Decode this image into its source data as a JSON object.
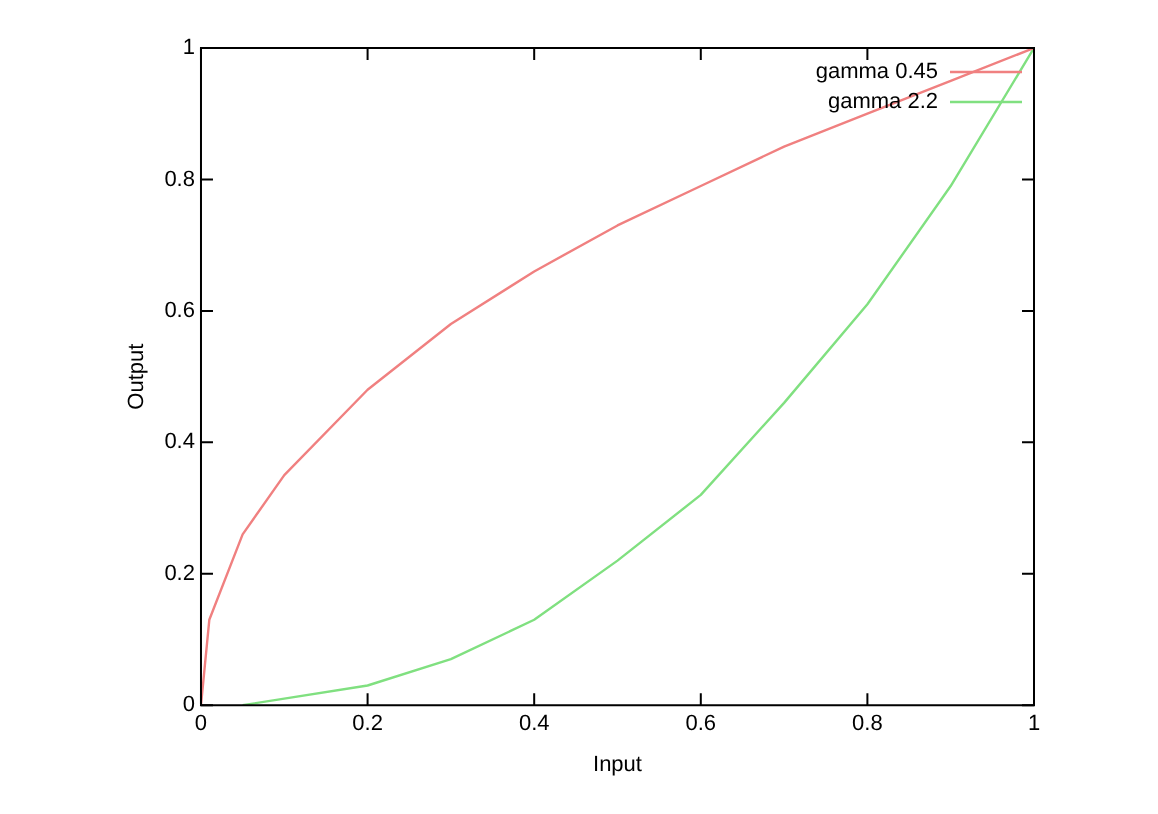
{
  "chart_data": {
    "type": "line",
    "xlabel": "Input",
    "ylabel": "Output",
    "xlim": [
      0,
      1
    ],
    "ylim": [
      0,
      1
    ],
    "xticks": [
      0,
      0.2,
      0.4,
      0.6,
      0.8,
      1
    ],
    "yticks": [
      0,
      0.2,
      0.4,
      0.6,
      0.8,
      1
    ],
    "grid": false,
    "legend": "top right",
    "marker": "none",
    "line_style": "solid",
    "series": [
      {
        "name": "gamma 0.45",
        "color": "#f08080",
        "x": [
          0,
          0.01,
          0.05,
          0.1,
          0.2,
          0.3,
          0.4,
          0.5,
          0.6,
          0.7,
          0.8,
          0.9,
          1
        ],
        "values": [
          0,
          0.13,
          0.26,
          0.35,
          0.48,
          0.58,
          0.66,
          0.73,
          0.79,
          0.85,
          0.9,
          0.95,
          1
        ]
      },
      {
        "name": "gamma 2.2",
        "color": "#80e080",
        "x": [
          0.05,
          0.1,
          0.2,
          0.3,
          0.4,
          0.5,
          0.6,
          0.7,
          0.8,
          0.9,
          1
        ],
        "values": [
          0,
          0.01,
          0.03,
          0.07,
          0.13,
          0.22,
          0.32,
          0.46,
          0.61,
          0.79,
          1
        ]
      }
    ]
  }
}
